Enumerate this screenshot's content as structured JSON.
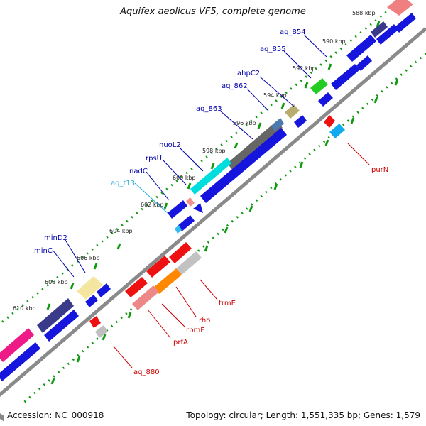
{
  "title": "Aquifex aeolicus VF5, complete genome",
  "footer": {
    "accession": "Accession: NC_000918",
    "summary": "Topology: circular; Length: 1,551,335 bp; Genes: 1,579"
  },
  "colors": {
    "tick_green": "#119911",
    "backbone": "#8a8a8a",
    "label_blue": "#0000aa",
    "label_red": "#cc0000",
    "label_cyan": "#22aadd"
  },
  "kbp_ticks": [
    {
      "label": "588 kbp"
    },
    {
      "label": "590 kbp"
    },
    {
      "label": "592 kbp"
    },
    {
      "label": "594 kbp"
    },
    {
      "label": "596 kbp"
    },
    {
      "label": "598 kbp"
    },
    {
      "label": "600 kbp"
    },
    {
      "label": "602 kbp"
    },
    {
      "label": "604 kbp"
    },
    {
      "label": "606 kbp"
    },
    {
      "label": "608 kbp"
    },
    {
      "label": "610 kbp"
    }
  ],
  "gene_labels": [
    {
      "name": "aq_854",
      "color": "blue"
    },
    {
      "name": "aq_855",
      "color": "blue"
    },
    {
      "name": "ahpC2",
      "color": "blue"
    },
    {
      "name": "aq_862",
      "color": "blue"
    },
    {
      "name": "aq_863",
      "color": "blue"
    },
    {
      "name": "nuoL2",
      "color": "blue"
    },
    {
      "name": "rpsU",
      "color": "blue"
    },
    {
      "name": "nadC",
      "color": "blue"
    },
    {
      "name": "aq_t13",
      "color": "cyan"
    },
    {
      "name": "minD2",
      "color": "blue"
    },
    {
      "name": "minC",
      "color": "blue"
    },
    {
      "name": "purN",
      "color": "red"
    },
    {
      "name": "trmE",
      "color": "red"
    },
    {
      "name": "rho",
      "color": "red"
    },
    {
      "name": "rpmE",
      "color": "red"
    },
    {
      "name": "prfA",
      "color": "red"
    },
    {
      "name": "aq_880",
      "color": "red"
    }
  ]
}
